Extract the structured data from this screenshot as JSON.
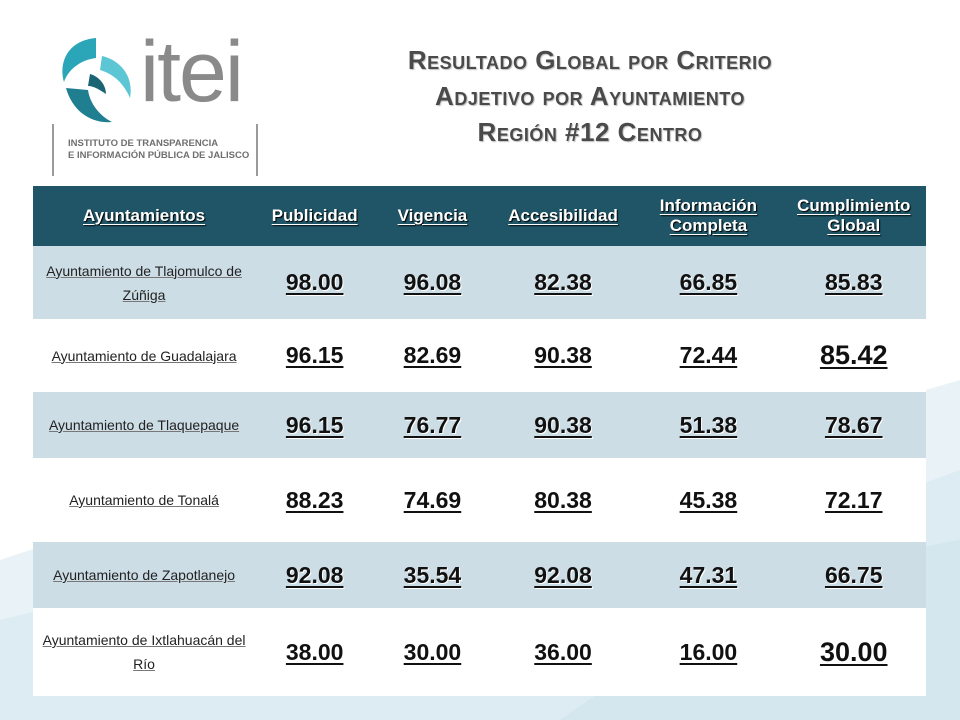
{
  "logo": {
    "wordmark": "itei",
    "subtitle_line1": "INSTITUTO DE TRANSPARENCIA",
    "subtitle_line2": "E INFORMACIÓN PÚBLICA DE JALISCO"
  },
  "title": {
    "line1": "Resultado Global por Criterio",
    "line2": "Adjetivo por Ayuntamiento",
    "line3": "Región #12 Centro"
  },
  "colors": {
    "header_bg": "#1f5566",
    "shaded_row": "#ccdde5",
    "title_text": "#4a4a4a"
  },
  "table": {
    "headers": [
      "Ayuntamientos",
      "Publicidad",
      "Vigencia",
      "Accesibilidad",
      "Información Completa",
      "Cumplimiento Global"
    ],
    "rows": [
      {
        "name": "Ayuntamiento de Tlajomulco de Zúñiga",
        "values": [
          "98.00",
          "96.08",
          "82.38",
          "66.85",
          "85.83"
        ]
      },
      {
        "name": "Ayuntamiento de Guadalajara",
        "values": [
          "96.15",
          "82.69",
          "90.38",
          "72.44",
          "85.42"
        ]
      },
      {
        "name": "Ayuntamiento de Tlaquepaque",
        "values": [
          "96.15",
          "76.77",
          "90.38",
          "51.38",
          "78.67"
        ]
      },
      {
        "name": "Ayuntamiento de Tonalá",
        "values": [
          "88.23",
          "74.69",
          "80.38",
          "45.38",
          "72.17"
        ]
      },
      {
        "name": "Ayuntamiento de Zapotlanejo",
        "values": [
          "92.08",
          "35.54",
          "92.08",
          "47.31",
          "66.75"
        ]
      },
      {
        "name": "Ayuntamiento de Ixtlahuacán del Río",
        "values": [
          "38.00",
          "30.00",
          "36.00",
          "16.00",
          "30.00"
        ]
      }
    ]
  }
}
